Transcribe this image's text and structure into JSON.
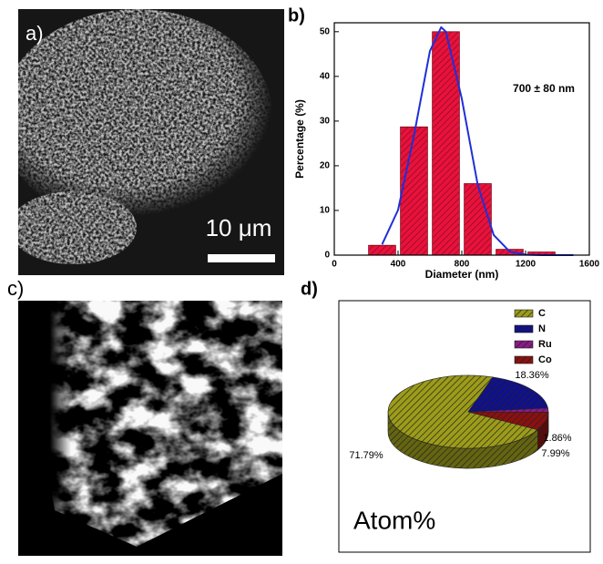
{
  "panels": {
    "a": {
      "label": "a)",
      "scale_bar": "10 μm"
    },
    "c": {
      "label": "c)"
    }
  },
  "chart_data": [
    {
      "type": "histogram",
      "panel_label": "b)",
      "xlabel": "Diameter (nm)",
      "ylabel": "Percentage (%)",
      "annotation": "700 ± 80 nm",
      "bins": [
        200,
        400,
        600,
        800,
        1000,
        1200,
        1400
      ],
      "values": [
        2.2,
        28.7,
        50,
        16,
        1.3,
        0.7
      ],
      "color": "#e8123c",
      "fit": {
        "color": "#1f2fd8",
        "x": [
          300,
          400,
          500,
          600,
          670,
          700,
          800,
          900,
          1000,
          1100,
          1200,
          1300,
          1400,
          1500
        ],
        "values": [
          2.4,
          10.1,
          26.8,
          45.7,
          51,
          50,
          35,
          15.7,
          4.5,
          0.8,
          0.1,
          0,
          0,
          0
        ]
      },
      "xlim": [
        0,
        1600
      ],
      "xticks": [
        0,
        400,
        800,
        1200,
        1600
      ],
      "ylim": [
        0,
        52
      ],
      "yticks": [
        0,
        10,
        20,
        30,
        40,
        50
      ]
    },
    {
      "type": "pie",
      "panel_label": "d)",
      "title": "Atom%",
      "categories": [
        "C",
        "N",
        "Ru",
        "Co"
      ],
      "values": [
        71.79,
        18.36,
        1.86,
        7.99
      ],
      "value_labels": [
        "71.79%",
        "18.36%",
        "1.86%",
        "7.99%"
      ],
      "colors": [
        "#9c9c1a",
        "#10108c",
        "#8a1a8a",
        "#8c1010"
      ]
    }
  ]
}
